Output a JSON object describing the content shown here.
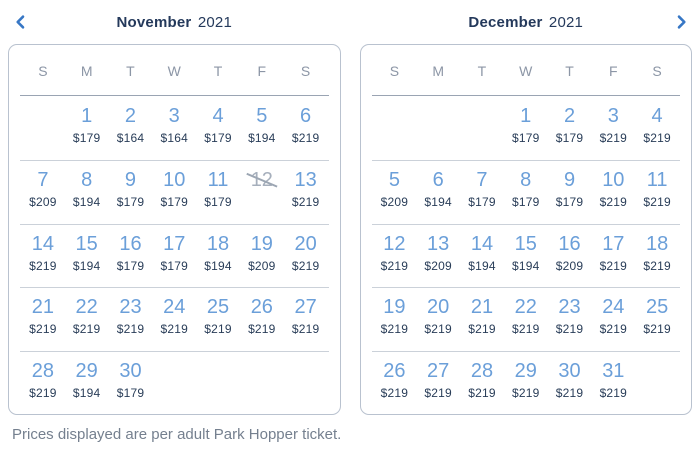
{
  "header": {
    "titles": [
      {
        "month": "November",
        "year": "2021"
      },
      {
        "month": "December",
        "year": "2021"
      }
    ]
  },
  "weekday_labels": [
    "S",
    "M",
    "T",
    "W",
    "T",
    "F",
    "S"
  ],
  "calendars": [
    {
      "month": "November",
      "year": "2021",
      "weeks": [
        [
          {
            "day": "",
            "price": ""
          },
          {
            "day": "1",
            "price": "$179"
          },
          {
            "day": "2",
            "price": "$164"
          },
          {
            "day": "3",
            "price": "$164"
          },
          {
            "day": "4",
            "price": "$179"
          },
          {
            "day": "5",
            "price": "$194"
          },
          {
            "day": "6",
            "price": "$219"
          }
        ],
        [
          {
            "day": "7",
            "price": "$209"
          },
          {
            "day": "8",
            "price": "$194"
          },
          {
            "day": "9",
            "price": "$179"
          },
          {
            "day": "10",
            "price": "$179"
          },
          {
            "day": "11",
            "price": "$179"
          },
          {
            "day": "12",
            "price": "",
            "unavailable": true
          },
          {
            "day": "13",
            "price": "$219"
          }
        ],
        [
          {
            "day": "14",
            "price": "$219"
          },
          {
            "day": "15",
            "price": "$194"
          },
          {
            "day": "16",
            "price": "$179"
          },
          {
            "day": "17",
            "price": "$179"
          },
          {
            "day": "18",
            "price": "$194"
          },
          {
            "day": "19",
            "price": "$209"
          },
          {
            "day": "20",
            "price": "$219"
          }
        ],
        [
          {
            "day": "21",
            "price": "$219"
          },
          {
            "day": "22",
            "price": "$219"
          },
          {
            "day": "23",
            "price": "$219"
          },
          {
            "day": "24",
            "price": "$219"
          },
          {
            "day": "25",
            "price": "$219"
          },
          {
            "day": "26",
            "price": "$219"
          },
          {
            "day": "27",
            "price": "$219"
          }
        ],
        [
          {
            "day": "28",
            "price": "$219"
          },
          {
            "day": "29",
            "price": "$194"
          },
          {
            "day": "30",
            "price": "$179"
          },
          {
            "day": "",
            "price": ""
          },
          {
            "day": "",
            "price": ""
          },
          {
            "day": "",
            "price": ""
          },
          {
            "day": "",
            "price": ""
          }
        ]
      ]
    },
    {
      "month": "December",
      "year": "2021",
      "weeks": [
        [
          {
            "day": "",
            "price": ""
          },
          {
            "day": "",
            "price": ""
          },
          {
            "day": "",
            "price": ""
          },
          {
            "day": "1",
            "price": "$179"
          },
          {
            "day": "2",
            "price": "$179"
          },
          {
            "day": "3",
            "price": "$219"
          },
          {
            "day": "4",
            "price": "$219"
          }
        ],
        [
          {
            "day": "5",
            "price": "$209"
          },
          {
            "day": "6",
            "price": "$194"
          },
          {
            "day": "7",
            "price": "$179"
          },
          {
            "day": "8",
            "price": "$179"
          },
          {
            "day": "9",
            "price": "$179"
          },
          {
            "day": "10",
            "price": "$219"
          },
          {
            "day": "11",
            "price": "$219"
          }
        ],
        [
          {
            "day": "12",
            "price": "$219"
          },
          {
            "day": "13",
            "price": "$209"
          },
          {
            "day": "14",
            "price": "$194"
          },
          {
            "day": "15",
            "price": "$194"
          },
          {
            "day": "16",
            "price": "$209"
          },
          {
            "day": "17",
            "price": "$219"
          },
          {
            "day": "18",
            "price": "$219"
          }
        ],
        [
          {
            "day": "19",
            "price": "$219"
          },
          {
            "day": "20",
            "price": "$219"
          },
          {
            "day": "21",
            "price": "$219"
          },
          {
            "day": "22",
            "price": "$219"
          },
          {
            "day": "23",
            "price": "$219"
          },
          {
            "day": "24",
            "price": "$219"
          },
          {
            "day": "25",
            "price": "$219"
          }
        ],
        [
          {
            "day": "26",
            "price": "$219"
          },
          {
            "day": "27",
            "price": "$219"
          },
          {
            "day": "28",
            "price": "$219"
          },
          {
            "day": "29",
            "price": "$219"
          },
          {
            "day": "30",
            "price": "$219"
          },
          {
            "day": "31",
            "price": "$219"
          },
          {
            "day": "",
            "price": ""
          }
        ]
      ]
    }
  ],
  "footnote": "Prices displayed are per adult Park Hopper ticket.",
  "colors": {
    "day_number": "#6B9FD9",
    "price": "#293D58",
    "title": "#24395B",
    "weekday": "#8C96A6",
    "chevron": "#3777C5",
    "panel_border": "#B9C2CF",
    "unavailable_day": "#A6AFBC",
    "footnote": "#75808F"
  }
}
